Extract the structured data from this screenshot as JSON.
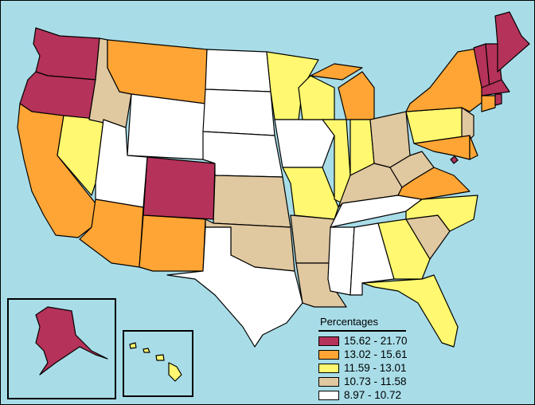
{
  "legend": {
    "title": "Percentages",
    "items": [
      {
        "label": "15.62 - 21.70",
        "color": "#b5325a"
      },
      {
        "label": "13.02 - 15.61",
        "color": "#ffa535"
      },
      {
        "label": "11.59 - 13.01",
        "color": "#fff870"
      },
      {
        "label": "10.73 - 11.58",
        "color": "#e0c8a0"
      },
      {
        "label": "8.97 - 10.72",
        "color": "#ffffff"
      }
    ]
  },
  "colors": {
    "water": "#a8dde8",
    "border": "#000000"
  },
  "states": {
    "WA": 0,
    "OR": 0,
    "CO": 0,
    "ME": 0,
    "NH": 0,
    "VT": 0,
    "MA": 0,
    "RI": 0,
    "DC": 0,
    "AK": 0,
    "MT": 1,
    "CA": 1,
    "AZ": 1,
    "NM": 1,
    "MI": 1,
    "NY": 1,
    "VA": 1,
    "CT": 1,
    "MD": 1,
    "DE": 1,
    "NV": 2,
    "MN": 2,
    "WI": 2,
    "IL": 2,
    "IN": 2,
    "MO": 2,
    "PA": 2,
    "NC": 2,
    "GA": 2,
    "FL": 2,
    "HI": 2,
    "ID": 3,
    "KS": 3,
    "OK": 3,
    "AR": 3,
    "LA": 3,
    "SC": 3,
    "OH": 3,
    "KY": 3,
    "WV": 3,
    "NJ": 3,
    "WY": 4,
    "UT": 4,
    "ND": 4,
    "SD": 4,
    "NE": 4,
    "IA": 4,
    "TX": 4,
    "TN": 4,
    "MS": 4,
    "AL": 4
  }
}
